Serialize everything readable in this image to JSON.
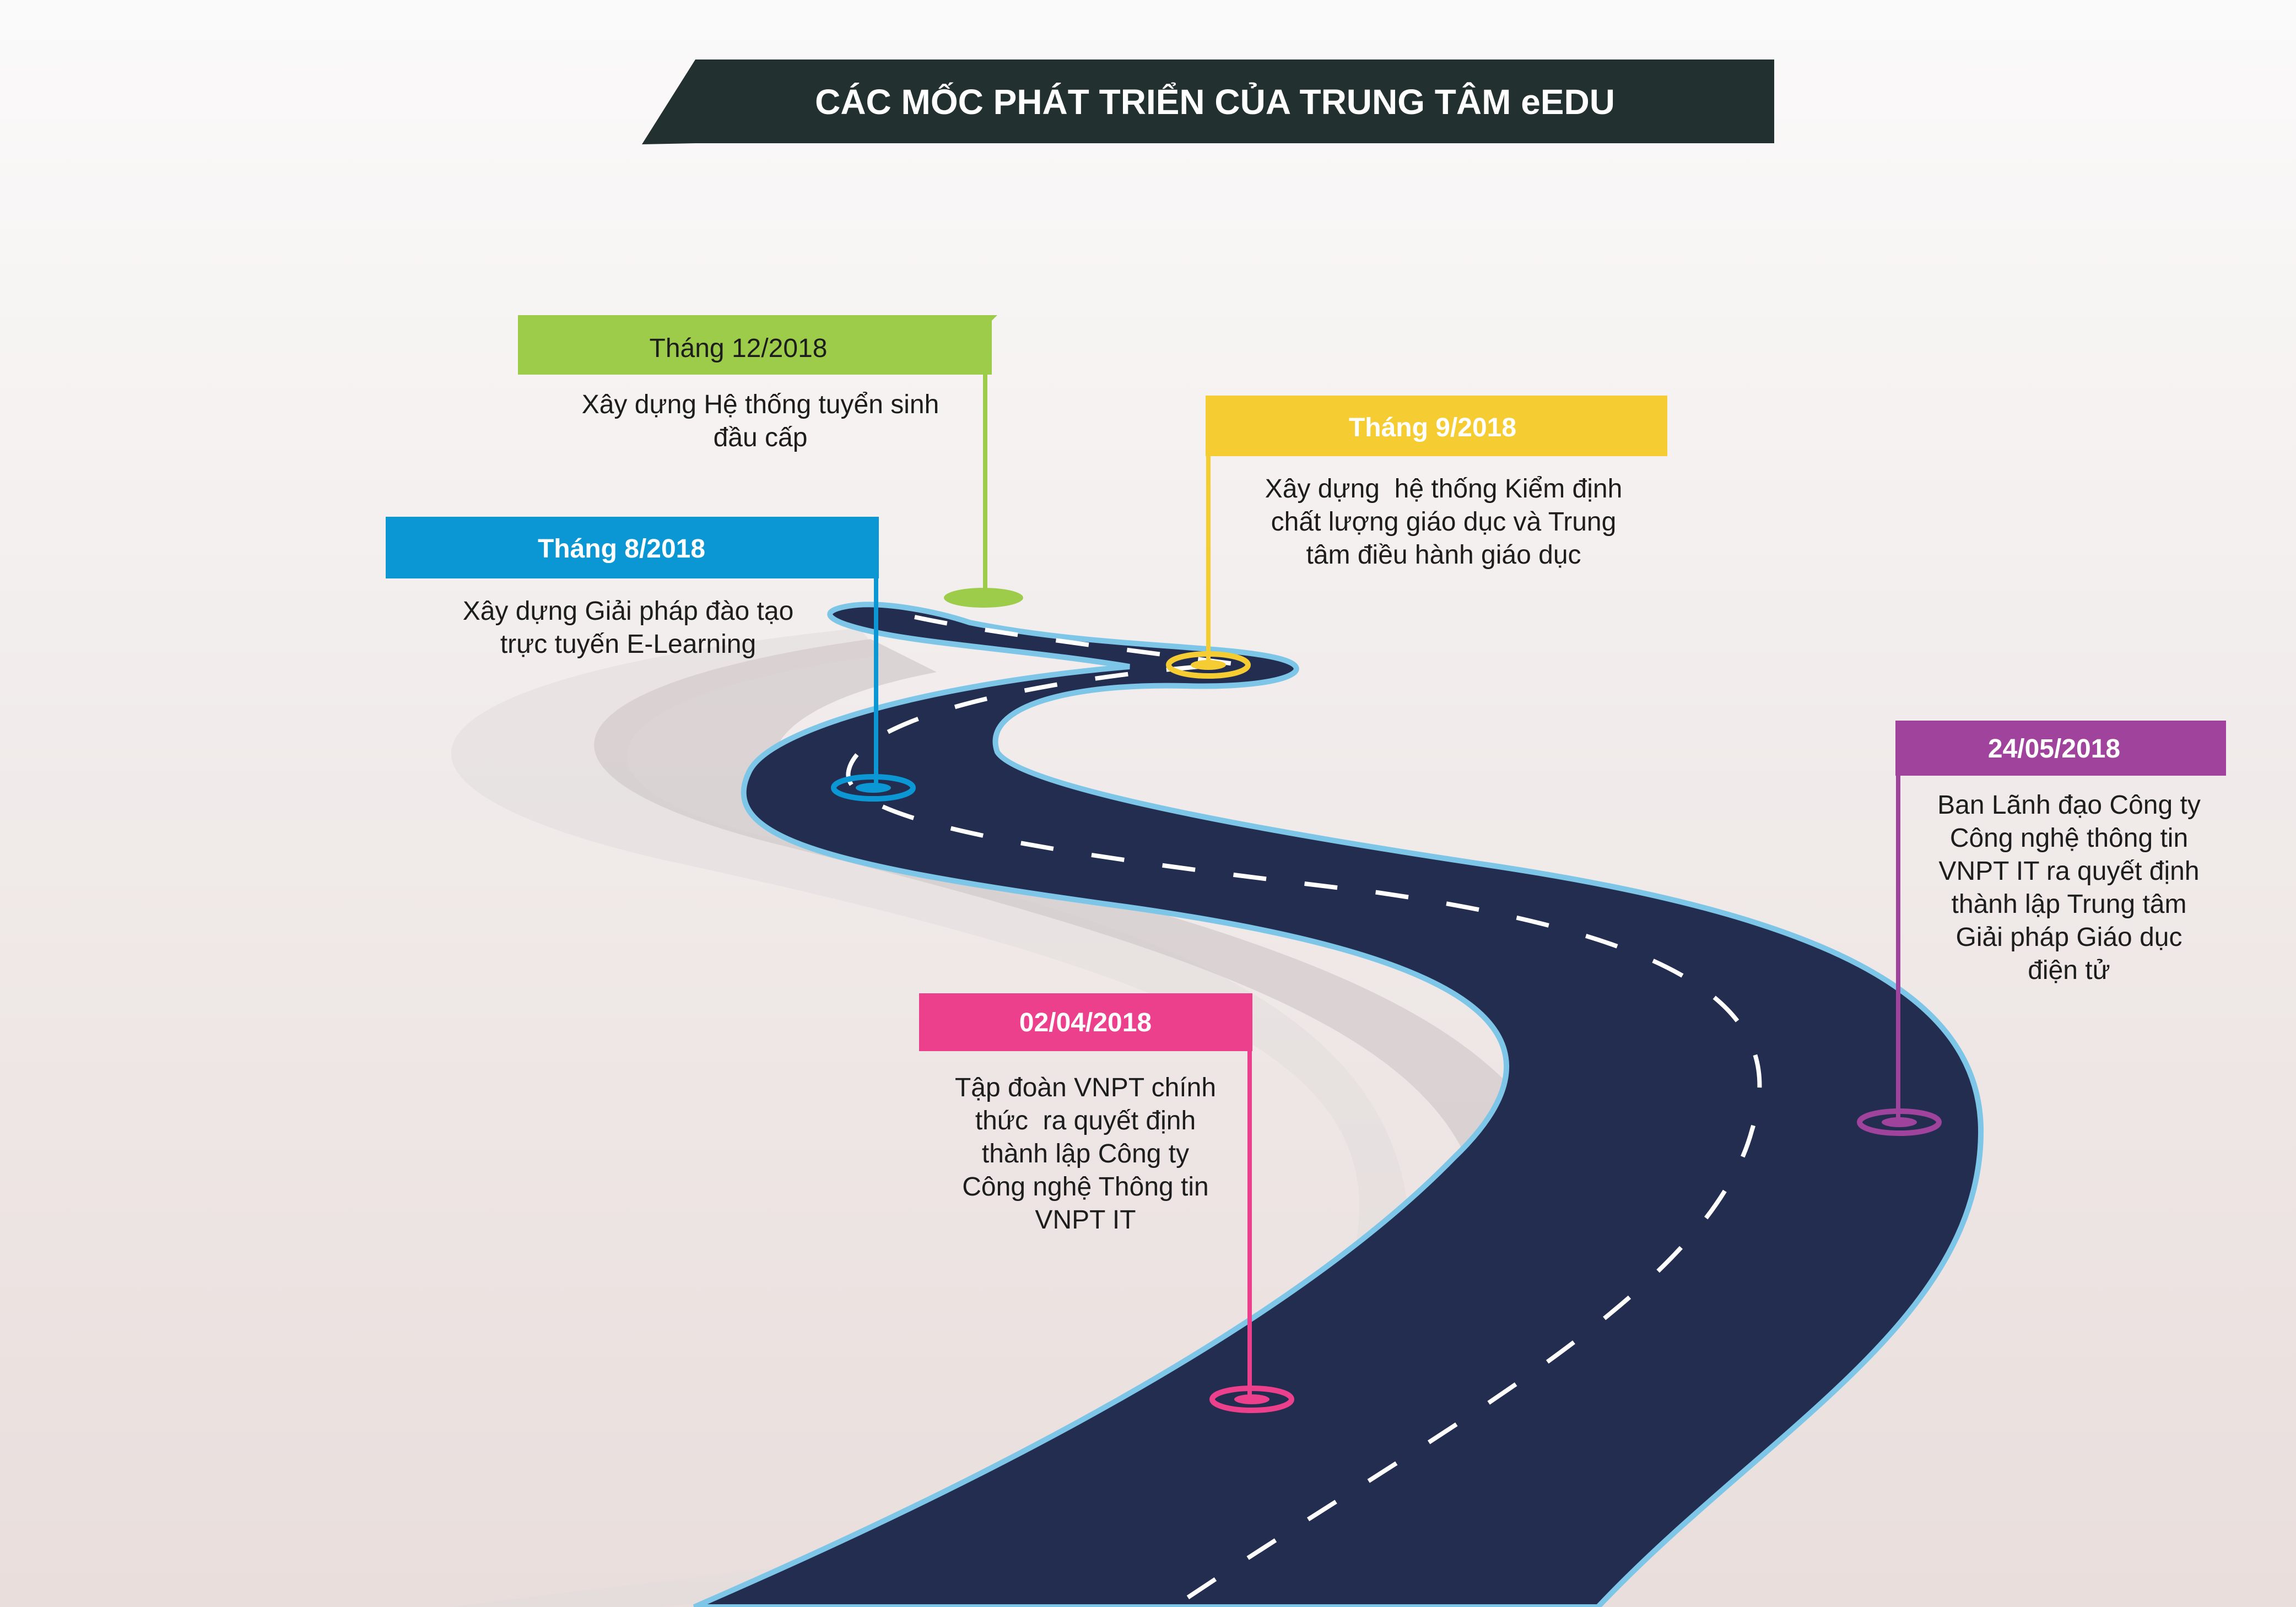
{
  "title": "CÁC MỐC PHÁT TRIỂN CỦA TRUNG TÂM eEDU",
  "colors": {
    "road": "#232d50",
    "road_edge": "#7ec6e8",
    "title_banner": "#22302f",
    "shadow_road": "#d9d3d3"
  },
  "milestones": [
    {
      "date": "Tháng 12/2018",
      "color": "#9ccc4a",
      "label_color": "#1d1d1d",
      "description": [
        "Xây dựng Hệ thống tuyển sinh",
        "đầu cấp"
      ]
    },
    {
      "date": "Tháng 9/2018",
      "color": "#f5cd32",
      "label_color": "#ffffff",
      "description": [
        "Xây dựng  hệ thống Kiểm định",
        "chất lượng giáo dục và Trung",
        "tâm điều hành giáo dục"
      ]
    },
    {
      "date": "Tháng 8/2018",
      "color": "#0b97d4",
      "label_color": "#ffffff",
      "description": [
        "Xây dựng Giải pháp đào tạo",
        "trực tuyến E-Learning"
      ]
    },
    {
      "date": "24/05/2018",
      "color": "#a0439d",
      "label_color": "#ffffff",
      "description": [
        "Ban Lãnh đạo Công ty",
        "Công nghệ thông tin",
        "VNPT IT ra quyết định",
        "thành lập Trung tâm",
        "Giải pháp Giáo dục",
        "điện tử"
      ]
    },
    {
      "date": "02/04/2018",
      "color": "#ec3f8c",
      "label_color": "#ffffff",
      "description": [
        "Tập đoàn VNPT chính",
        "thức  ra quyết định",
        "thành lập Công ty",
        "Công nghệ Thông tin",
        "VNPT IT"
      ]
    }
  ]
}
